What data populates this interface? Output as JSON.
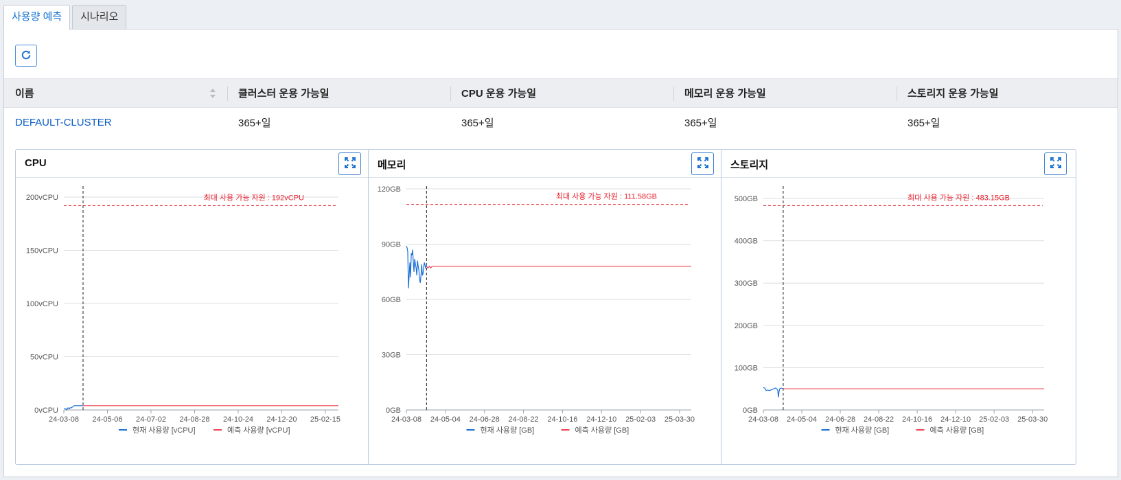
{
  "tabs": [
    {
      "label": "사용량 예측",
      "active": true
    },
    {
      "label": "시나리오",
      "active": false
    }
  ],
  "toolbar": {
    "refresh_icon": "refresh-icon"
  },
  "table": {
    "columns": [
      "이름",
      "클러스터 운용 가능일",
      "CPU 운용 가능일",
      "메모리 운용 가능일",
      "스토리지 운용 가능일"
    ],
    "rows": [
      {
        "name": "DEFAULT-CLUSTER",
        "cluster_days": "365+일",
        "cpu_days": "365+일",
        "memory_days": "365+일",
        "storage_days": "365+일"
      }
    ]
  },
  "colors": {
    "accent": "#0b6fd0",
    "current": "#1a6fd6",
    "forecast": "#ee4450",
    "max": "#e8202e"
  },
  "chart_data": [
    {
      "type": "line",
      "title": "CPU",
      "y_ticks": [
        "0vCPU",
        "50vCPU",
        "100vCPU",
        "150vCPU",
        "200vCPU"
      ],
      "ylim": [
        0,
        200
      ],
      "x_ticks": [
        "24-03-08",
        "24-05-06",
        "24-07-02",
        "24-08-28",
        "24-10-24",
        "24-12-20",
        "25-02-15"
      ],
      "max_value": 192,
      "max_label": "최대 사용 가능 자원 : 192vCPU",
      "series": [
        {
          "name": "현재 사용량 [vCPU]",
          "x": [
            0,
            3,
            4,
            6,
            8,
            9,
            11,
            13,
            15,
            17,
            20,
            24,
            28
          ],
          "y": [
            1,
            1,
            0,
            2,
            1,
            2,
            2,
            3,
            4,
            4,
            4,
            4,
            4
          ]
        },
        {
          "name": "예측 사용량 [vCPU]",
          "x": [
            28,
            400
          ],
          "y": [
            4,
            4
          ]
        }
      ],
      "x_max": 400,
      "today_x": 28
    },
    {
      "type": "line",
      "title": "메모리",
      "y_ticks": [
        "0GB",
        "30GB",
        "60GB",
        "90GB",
        "120GB"
      ],
      "ylim": [
        0,
        120
      ],
      "x_ticks": [
        "24-03-08",
        "24-05-04",
        "24-06-28",
        "24-08-22",
        "24-10-16",
        "24-12-10",
        "25-02-03",
        "25-03-30"
      ],
      "max_value": 111.58,
      "max_label": "최대 사용 가능 자원 : 111.58GB",
      "series": [
        {
          "name": "현재 사용량 [GB]",
          "x": [
            0,
            1,
            2,
            3,
            4,
            5,
            6,
            7,
            8,
            9,
            10,
            11,
            12,
            13,
            14,
            15,
            16,
            17,
            18,
            19,
            20,
            21,
            22,
            23,
            24,
            25,
            26,
            27,
            28,
            29
          ],
          "y": [
            89,
            88,
            86,
            66,
            73,
            80,
            72,
            85,
            84,
            87,
            80,
            75,
            82,
            79,
            77,
            73,
            81,
            78,
            76,
            71,
            69,
            73,
            79,
            73,
            74,
            78,
            80,
            78,
            77,
            79
          ]
        },
        {
          "name": "예측 사용량 [GB]",
          "x": [
            29,
            31,
            33,
            35,
            37,
            40,
            43,
            410
          ],
          "y": [
            78,
            77,
            78,
            77,
            78,
            78,
            78,
            78
          ]
        }
      ],
      "x_max": 410,
      "today_x": 29
    },
    {
      "type": "line",
      "title": "스토리지",
      "y_ticks": [
        "0GB",
        "100GB",
        "200GB",
        "300GB",
        "400GB",
        "500GB"
      ],
      "ylim": [
        0,
        500
      ],
      "x_ticks": [
        "24-03-08",
        "24-05-04",
        "24-06-28",
        "24-08-22",
        "24-10-16",
        "24-12-10",
        "25-02-03",
        "25-03-30"
      ],
      "max_value": 483.15,
      "max_label": "최대 사용 가능 자원 : 483.15GB",
      "series": [
        {
          "name": "현재 사용량 [GB]",
          "x": [
            0,
            2,
            4,
            6,
            9,
            12,
            15,
            18,
            21,
            22,
            23,
            24,
            26,
            29
          ],
          "y": [
            53,
            52,
            46,
            47,
            46,
            48,
            50,
            52,
            47,
            30,
            44,
            50,
            52,
            50
          ]
        },
        {
          "name": "예측 사용량 [GB]",
          "x": [
            29,
            410
          ],
          "y": [
            50,
            50
          ]
        }
      ],
      "x_max": 410,
      "today_x": 29
    }
  ]
}
